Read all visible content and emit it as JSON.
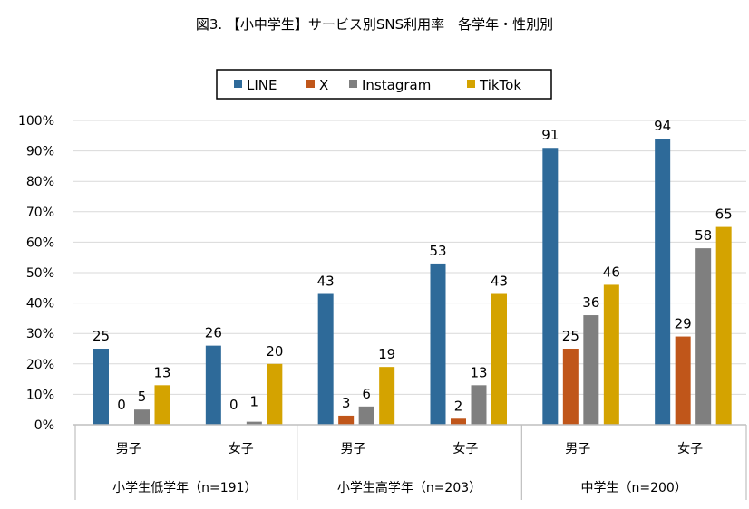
{
  "chart_data": {
    "type": "bar",
    "title": "図3. 【小中学生】サービス別SNS利用率　各学年・性別別",
    "categories": [
      "男子",
      "女子",
      "男子",
      "女子",
      "男子",
      "女子"
    ],
    "groups": [
      {
        "label": "小学生低学年（n=191）",
        "span": 2
      },
      {
        "label": "小学生高学年（n=203）",
        "span": 2
      },
      {
        "label": "中学生（n=200）",
        "span": 2
      }
    ],
    "series": [
      {
        "name": "LINE",
        "color": "#2E6A99",
        "values": [
          25,
          26,
          43,
          53,
          91,
          94
        ]
      },
      {
        "name": "X",
        "color": "#C0561A",
        "values": [
          0,
          0,
          3,
          2,
          25,
          29
        ]
      },
      {
        "name": "Instagram",
        "color": "#7F7F7F",
        "values": [
          5,
          1,
          6,
          13,
          36,
          58
        ]
      },
      {
        "name": "TikTok",
        "color": "#D4A300",
        "values": [
          13,
          20,
          19,
          43,
          46,
          65
        ]
      }
    ],
    "ylim": [
      0,
      100
    ],
    "yticks": [
      "0%",
      "10%",
      "20%",
      "30%",
      "40%",
      "50%",
      "60%",
      "70%",
      "80%",
      "90%",
      "100%"
    ],
    "grid": true,
    "legend": "top"
  }
}
